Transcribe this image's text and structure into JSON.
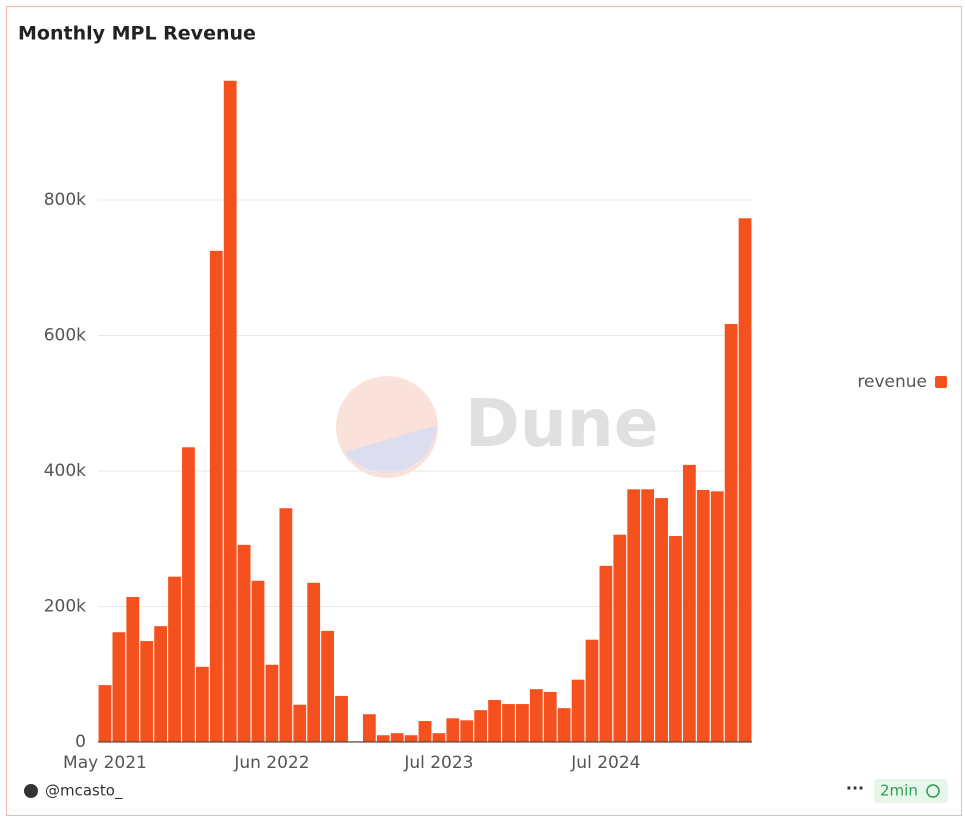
{
  "chart_data": {
    "type": "bar",
    "title": "Monthly MPL Revenue",
    "categories": [
      "May 2021",
      null,
      null,
      null,
      null,
      null,
      null,
      null,
      null,
      null,
      null,
      null,
      "Jun 2022",
      null,
      null,
      null,
      null,
      null,
      null,
      null,
      null,
      null,
      null,
      null,
      "Jul 2023",
      null,
      null,
      null,
      null,
      null,
      null,
      null,
      null,
      null,
      null,
      null,
      "Jul 2024",
      null,
      null,
      null,
      null,
      null,
      null,
      null,
      null,
      null,
      null
    ],
    "series": [
      {
        "name": "revenue",
        "color": "#f4511e",
        "values": [
          84000,
          162000,
          214000,
          149000,
          171000,
          244000,
          435000,
          111000,
          725000,
          976000,
          291000,
          238000,
          114000,
          345000,
          55000,
          235000,
          164000,
          68000,
          1000,
          41000,
          10000,
          13000,
          10000,
          31000,
          13000,
          35000,
          32000,
          47000,
          62000,
          56000,
          56000,
          78000,
          74000,
          50000,
          92000,
          151000,
          260000,
          306000,
          373000,
          373000,
          360000,
          304000,
          409000,
          372000,
          370000,
          617000,
          773000
        ]
      }
    ],
    "ylim": [
      0,
      1000000
    ],
    "yticks": [
      0,
      {
        "value": 200000,
        "label": "200k"
      },
      {
        "value": 400000,
        "label": "400k"
      },
      {
        "value": 600000,
        "label": "600k"
      },
      {
        "value": 800000,
        "label": "800k"
      }
    ],
    "grid": true,
    "legend": "right"
  },
  "watermark": "Dune",
  "footer": {
    "author": "@mcasto_",
    "refresh": "2min"
  }
}
